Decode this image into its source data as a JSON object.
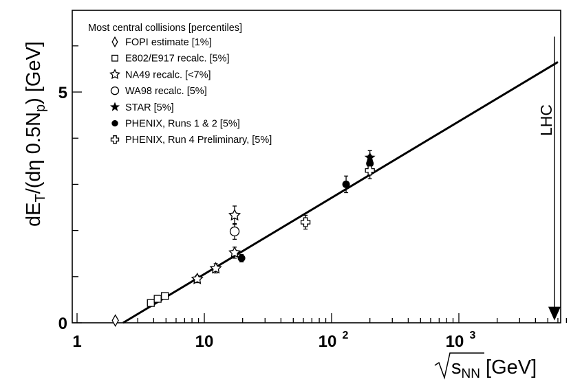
{
  "chart_data": {
    "type": "scatter",
    "title": "",
    "xlabel": "√s_NN [GeV]",
    "xlabel_parts": {
      "var": "s",
      "sub": "NN",
      "unit": "[GeV]"
    },
    "ylabel": "dE_T/(dη 0.5N_p) [GeV]",
    "ylabel_parts": {
      "p1": "dE",
      "sub1": "T",
      "p2": "/(dη 0.5N",
      "sub2": "p",
      "p3": ") [GeV]"
    },
    "xscale": "log",
    "xlim": [
      1,
      7000
    ],
    "ylim": [
      0,
      7
    ],
    "x_ticks": [
      {
        "value": 1,
        "label": "1"
      },
      {
        "value": 10,
        "label": "10"
      },
      {
        "value": 100,
        "label": "10",
        "exp": "2"
      },
      {
        "value": 1000,
        "label": "10",
        "exp": "3"
      }
    ],
    "y_ticks": [
      {
        "value": 0,
        "label": "0"
      },
      {
        "value": 5,
        "label": "5"
      }
    ],
    "legend": {
      "title": "Most central collisions [percentiles]",
      "placement": "top-left"
    },
    "series": [
      {
        "name": "FOPI estimate [1%]",
        "marker": "diamond-open",
        "points": [
          {
            "x": 2.0,
            "y": 0.05,
            "yerr": 0
          }
        ]
      },
      {
        "name": "E802/E917 recalc. [5%]",
        "marker": "square-open",
        "points": [
          {
            "x": 3.8,
            "y": 0.43,
            "yerr": 0.05
          },
          {
            "x": 4.3,
            "y": 0.52,
            "yerr": 0.05
          },
          {
            "x": 4.9,
            "y": 0.58,
            "yerr": 0.06
          }
        ]
      },
      {
        "name": "NA49 recalc. [<7%]",
        "marker": "star-open",
        "points": [
          {
            "x": 8.8,
            "y": 0.95,
            "yerr": 0.08
          },
          {
            "x": 12.3,
            "y": 1.18,
            "yerr": 0.1
          },
          {
            "x": 17.3,
            "y": 1.52,
            "yerr": 0.12
          },
          {
            "x": 17.3,
            "y": 2.33,
            "yerr": 0.2
          }
        ]
      },
      {
        "name": "WA98 recalc. [5%]",
        "marker": "circle-open",
        "points": [
          {
            "x": 17.3,
            "y": 1.98,
            "yerr": 0.17
          }
        ]
      },
      {
        "name": "STAR [5%]",
        "marker": "star-filled",
        "points": [
          {
            "x": 200,
            "y": 3.58,
            "yerr": 0.15
          }
        ]
      },
      {
        "name": "PHENIX, Runs 1 & 2 [5%]",
        "marker": "circle-filled",
        "points": [
          {
            "x": 19.6,
            "y": 1.4,
            "yerr": 0.08
          },
          {
            "x": 130,
            "y": 3.0,
            "yerr": 0.18
          },
          {
            "x": 200,
            "y": 3.45,
            "yerr": 0.18
          }
        ]
      },
      {
        "name": "PHENIX, Run 4  Preliminary, [5%]",
        "marker": "cross-open",
        "points": [
          {
            "x": 62.4,
            "y": 2.18,
            "yerr": 0.15
          },
          {
            "x": 200,
            "y": 3.3,
            "yerr": 0.18
          }
        ]
      }
    ],
    "fit_line": {
      "x": [
        2.3,
        6000
      ],
      "y": [
        0.0,
        5.65
      ]
    },
    "annotation": {
      "text": "LHC",
      "x": 5500,
      "y_from": 6.2,
      "y_to": 0.05
    }
  }
}
